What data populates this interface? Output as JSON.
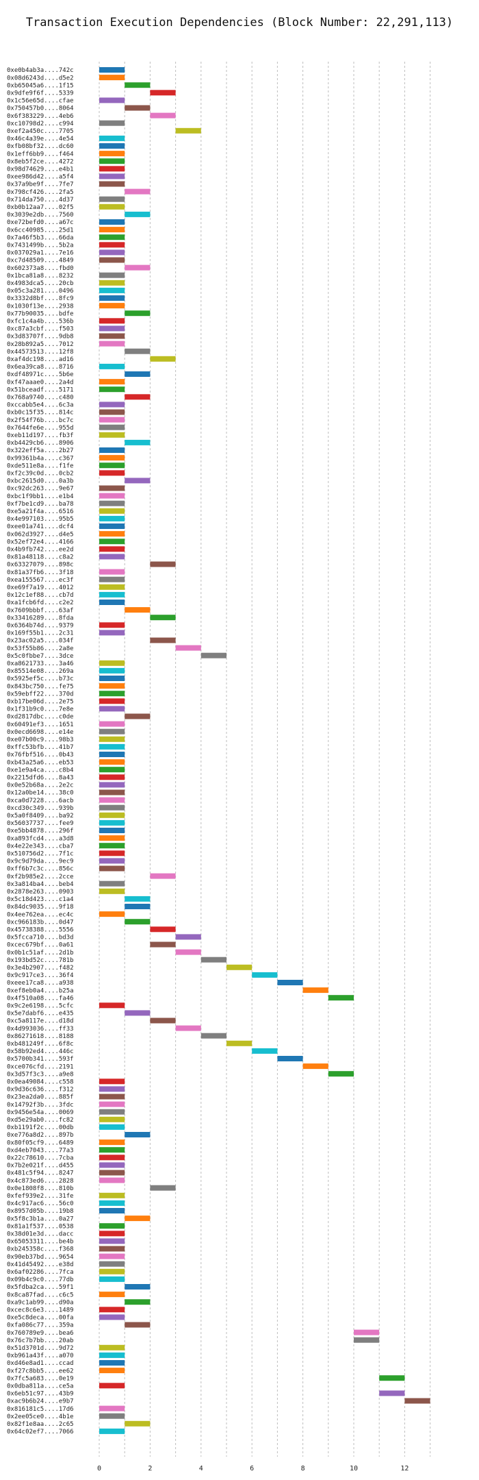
{
  "chart_data": {
    "type": "bar",
    "orientation": "horizontal-gantt",
    "title": "Transaction Execution Dependencies (Block Number: 22,291,113)",
    "xlabel": "",
    "ylabel": "",
    "xlim": [
      -0.8,
      13.8
    ],
    "xticks": [
      0,
      2,
      4,
      6,
      8,
      10,
      12
    ],
    "grid": "vertical dashed",
    "bar_duration": 1,
    "color_cycle": [
      "#1f77b4",
      "#ff7f0e",
      "#2ca02c",
      "#d62728",
      "#9467bd",
      "#8c564b",
      "#e377c2",
      "#7f7f7f",
      "#bcbd22",
      "#17becf"
    ],
    "transactions": [
      {
        "hash": "0xe0b4ab3a....742c",
        "start": 0
      },
      {
        "hash": "0x08d6243d....d5e2",
        "start": 0
      },
      {
        "hash": "0xb65045a6....1f15",
        "start": 1
      },
      {
        "hash": "0x9dfe9f6f....5339",
        "start": 2
      },
      {
        "hash": "0x1c56e65d....cfae",
        "start": 0
      },
      {
        "hash": "0x750457b0....8064",
        "start": 1
      },
      {
        "hash": "0x6f383229....4eb6",
        "start": 2
      },
      {
        "hash": "0xc10798d2....c994",
        "start": 0
      },
      {
        "hash": "0xef2a450c....7705",
        "start": 3
      },
      {
        "hash": "0x46c4a39e....4e54",
        "start": 0
      },
      {
        "hash": "0xfb08bf32....dc60",
        "start": 0
      },
      {
        "hash": "0x1eff6bb9....f464",
        "start": 0
      },
      {
        "hash": "0x8eb5f2ce....4272",
        "start": 0
      },
      {
        "hash": "0x98d74629....e4b1",
        "start": 0
      },
      {
        "hash": "0xee986d42....a5f4",
        "start": 0
      },
      {
        "hash": "0x37a9be9f....7fe7",
        "start": 0
      },
      {
        "hash": "0x798cf426....2fa5",
        "start": 1
      },
      {
        "hash": "0x714da750....4d37",
        "start": 0
      },
      {
        "hash": "0xb0b12aa7....02f5",
        "start": 0
      },
      {
        "hash": "0x3039e2db....7560",
        "start": 1
      },
      {
        "hash": "0xe72befd0....a67c",
        "start": 0
      },
      {
        "hash": "0x6cc40985....25d1",
        "start": 0
      },
      {
        "hash": "0x7a46f5b3....66da",
        "start": 0
      },
      {
        "hash": "0x7431499b....5b2a",
        "start": 0
      },
      {
        "hash": "0x037029a1....7e16",
        "start": 0
      },
      {
        "hash": "0xc7d48509....4849",
        "start": 0
      },
      {
        "hash": "0x602373a8....fbd0",
        "start": 1
      },
      {
        "hash": "0x1bca81a8....8232",
        "start": 0
      },
      {
        "hash": "0x4983dca5....20cb",
        "start": 0
      },
      {
        "hash": "0x05c3a281....0496",
        "start": 0
      },
      {
        "hash": "0x3332d8bf....8fc9",
        "start": 0
      },
      {
        "hash": "0x1030f13e....2938",
        "start": 0
      },
      {
        "hash": "0x77b90035....bdfe",
        "start": 1
      },
      {
        "hash": "0xfc1c4a4b....536b",
        "start": 0
      },
      {
        "hash": "0xc87a3cbf....f503",
        "start": 0
      },
      {
        "hash": "0x3d83707f....9db8",
        "start": 0
      },
      {
        "hash": "0x28b892a5....7012",
        "start": 0
      },
      {
        "hash": "0x44573513....12f8",
        "start": 1
      },
      {
        "hash": "0xaf4dc198....ad16",
        "start": 2
      },
      {
        "hash": "0x6ea39ca8....8716",
        "start": 0
      },
      {
        "hash": "0xdf48971c....5b6e",
        "start": 1
      },
      {
        "hash": "0xf47aaae0....2a4d",
        "start": 0
      },
      {
        "hash": "0x51bceadf....5171",
        "start": 0
      },
      {
        "hash": "0x768a9740....c480",
        "start": 1
      },
      {
        "hash": "0xccabb5e4....6c3a",
        "start": 0
      },
      {
        "hash": "0xb0c15f35....814c",
        "start": 0
      },
      {
        "hash": "0x2f54f76b....bc7c",
        "start": 0
      },
      {
        "hash": "0x7644fe6e....955d",
        "start": 0
      },
      {
        "hash": "0xeb11d197....fb3f",
        "start": 0
      },
      {
        "hash": "0xb4429cb6....8906",
        "start": 1
      },
      {
        "hash": "0x322eff5a....2b27",
        "start": 0
      },
      {
        "hash": "0x99361b4a....c367",
        "start": 0
      },
      {
        "hash": "0xde511e8a....f1fe",
        "start": 0
      },
      {
        "hash": "0xf2c39c0d....0cb2",
        "start": 0
      },
      {
        "hash": "0xbc2615d0....0a3b",
        "start": 1
      },
      {
        "hash": "0xc92dc263....9e67",
        "start": 0
      },
      {
        "hash": "0xbc1f9bb1....e1b4",
        "start": 0
      },
      {
        "hash": "0xf7be1cd9....ba78",
        "start": 0
      },
      {
        "hash": "0xe5a21f4a....6516",
        "start": 0
      },
      {
        "hash": "0x4e997103....95b5",
        "start": 0
      },
      {
        "hash": "0xee01a741....dcf4",
        "start": 0
      },
      {
        "hash": "0x062d3927....d4e5",
        "start": 0
      },
      {
        "hash": "0x52ef72e4....4166",
        "start": 0
      },
      {
        "hash": "0x4b9fb742....ee2d",
        "start": 0
      },
      {
        "hash": "0x81a48118....c8a2",
        "start": 0
      },
      {
        "hash": "0x63327079....898c",
        "start": 2
      },
      {
        "hash": "0x81a37fb6....3f18",
        "start": 0
      },
      {
        "hash": "0xea155567....ec3f",
        "start": 0
      },
      {
        "hash": "0xe69f7a19....4012",
        "start": 0
      },
      {
        "hash": "0x12c1ef88....cb7d",
        "start": 0
      },
      {
        "hash": "0xa1fcb6fd....c2e2",
        "start": 0
      },
      {
        "hash": "0x7609bbbf....63af",
        "start": 1
      },
      {
        "hash": "0x33416289....8fda",
        "start": 2
      },
      {
        "hash": "0x6364b74d....9379",
        "start": 0
      },
      {
        "hash": "0x169f55b1....2c31",
        "start": 0
      },
      {
        "hash": "0x23ac02a5....034f",
        "start": 2
      },
      {
        "hash": "0x53f55b86....2a8e",
        "start": 3
      },
      {
        "hash": "0x5c0fbbe7....3dce",
        "start": 4
      },
      {
        "hash": "0xa8621733....3a46",
        "start": 0
      },
      {
        "hash": "0x85514e08....269a",
        "start": 0
      },
      {
        "hash": "0x5925ef5c....b73c",
        "start": 0
      },
      {
        "hash": "0x843bc750....fe75",
        "start": 0
      },
      {
        "hash": "0x59ebff22....370d",
        "start": 0
      },
      {
        "hash": "0xb17be06d....2e75",
        "start": 0
      },
      {
        "hash": "0x1f31b9c0....7e8e",
        "start": 0
      },
      {
        "hash": "0xd2817dbc....c0de",
        "start": 1
      },
      {
        "hash": "0x60491ef3....1651",
        "start": 0
      },
      {
        "hash": "0x0ecd6698....e14e",
        "start": 0
      },
      {
        "hash": "0xe07b00c9....98b3",
        "start": 0
      },
      {
        "hash": "0xffc53bfb....41b7",
        "start": 0
      },
      {
        "hash": "0x76fbf516....0b43",
        "start": 0
      },
      {
        "hash": "0xb43a25a6....eb53",
        "start": 0
      },
      {
        "hash": "0xe1e9a4ca....c8b4",
        "start": 0
      },
      {
        "hash": "0x2215dfd6....8a43",
        "start": 0
      },
      {
        "hash": "0x0e52b68a....2e2c",
        "start": 0
      },
      {
        "hash": "0x12a0be14....38c0",
        "start": 0
      },
      {
        "hash": "0xca0d7228....6acb",
        "start": 0
      },
      {
        "hash": "0xcd30c349....939b",
        "start": 0
      },
      {
        "hash": "0x5a0f8409....ba92",
        "start": 0
      },
      {
        "hash": "0x56037737....fee9",
        "start": 0
      },
      {
        "hash": "0xe5bb4878....296f",
        "start": 0
      },
      {
        "hash": "0xa893fcd4....a3d8",
        "start": 0
      },
      {
        "hash": "0x4e22e343....cba7",
        "start": 0
      },
      {
        "hash": "0x510756d2....7f1c",
        "start": 0
      },
      {
        "hash": "0x9c9d79da....9ec9",
        "start": 0
      },
      {
        "hash": "0xff6b7c3c....856c",
        "start": 0
      },
      {
        "hash": "0xf2b985e2....2cce",
        "start": 2
      },
      {
        "hash": "0x3a814ba4....beb4",
        "start": 0
      },
      {
        "hash": "0x2878e263....0903",
        "start": 0
      },
      {
        "hash": "0x5c18d423....c1a4",
        "start": 1
      },
      {
        "hash": "0x84dc9035....9f18",
        "start": 1
      },
      {
        "hash": "0x4ee762ea....ec4c",
        "start": 0
      },
      {
        "hash": "0xc966183b....0d47",
        "start": 1
      },
      {
        "hash": "0x45738388....5556",
        "start": 2
      },
      {
        "hash": "0x5fcca710....bd3d",
        "start": 3
      },
      {
        "hash": "0xcec679bf....0a61",
        "start": 2
      },
      {
        "hash": "0x0b1c51af....2d1b",
        "start": 3
      },
      {
        "hash": "0x193bd52c....781b",
        "start": 4
      },
      {
        "hash": "0x3e4b2907....f482",
        "start": 5
      },
      {
        "hash": "0x9c917ce3....36f4",
        "start": 6
      },
      {
        "hash": "0xeee17ca8....a938",
        "start": 7
      },
      {
        "hash": "0xef8eb0a4....b25a",
        "start": 8
      },
      {
        "hash": "0x4f510a08....fa46",
        "start": 9
      },
      {
        "hash": "0x9c2e6198....5cfc",
        "start": 0
      },
      {
        "hash": "0x5e7dabf6....e435",
        "start": 1
      },
      {
        "hash": "0xc5a8117e....d18d",
        "start": 2
      },
      {
        "hash": "0x4d993036....ff33",
        "start": 3
      },
      {
        "hash": "0x86271618....8188",
        "start": 4
      },
      {
        "hash": "0xb481249f....6f8c",
        "start": 5
      },
      {
        "hash": "0x58b92ed4....446c",
        "start": 6
      },
      {
        "hash": "0x5700b341....593f",
        "start": 7
      },
      {
        "hash": "0xce076cfd....2191",
        "start": 8
      },
      {
        "hash": "0x3d57f3c3....a9e8",
        "start": 9
      },
      {
        "hash": "0x0ea49084....c558",
        "start": 0
      },
      {
        "hash": "0x9d36c636....f312",
        "start": 0
      },
      {
        "hash": "0x23ea2da0....885f",
        "start": 0
      },
      {
        "hash": "0x14792f3b....3fdc",
        "start": 0
      },
      {
        "hash": "0x9456e54a....0069",
        "start": 0
      },
      {
        "hash": "0xd5e29ab0....fc82",
        "start": 0
      },
      {
        "hash": "0xb1191f2c....00db",
        "start": 0
      },
      {
        "hash": "0xe776a8d2....897b",
        "start": 1
      },
      {
        "hash": "0x80f05cf9....6489",
        "start": 0
      },
      {
        "hash": "0xd4eb7043....77a3",
        "start": 0
      },
      {
        "hash": "0x22c78610....7cba",
        "start": 0
      },
      {
        "hash": "0x7b2e021f....d455",
        "start": 0
      },
      {
        "hash": "0x481c5f94....8247",
        "start": 0
      },
      {
        "hash": "0x4c873ed6....2828",
        "start": 0
      },
      {
        "hash": "0x0e1808f8....810b",
        "start": 2
      },
      {
        "hash": "0xfef939e2....31fe",
        "start": 0
      },
      {
        "hash": "0x4c917ac6....56c0",
        "start": 0
      },
      {
        "hash": "0x8957d05b....19b8",
        "start": 0
      },
      {
        "hash": "0x5f8c3b1a....0a27",
        "start": 1
      },
      {
        "hash": "0x81a1f537....0538",
        "start": 0
      },
      {
        "hash": "0x38d01e3d....dacc",
        "start": 0
      },
      {
        "hash": "0x65053311....be4b",
        "start": 0
      },
      {
        "hash": "0xb245358c....f368",
        "start": 0
      },
      {
        "hash": "0x90eb37bd....9654",
        "start": 0
      },
      {
        "hash": "0x41d45492....e38d",
        "start": 0
      },
      {
        "hash": "0x6af02286....7fca",
        "start": 0
      },
      {
        "hash": "0x09b4c9c0....77db",
        "start": 0
      },
      {
        "hash": "0x5fdba2ca....59f1",
        "start": 1
      },
      {
        "hash": "0x8ca87fad....c6c5",
        "start": 0
      },
      {
        "hash": "0xa9c1ab99....d90a",
        "start": 1
      },
      {
        "hash": "0xcec8c6e3....1489",
        "start": 0
      },
      {
        "hash": "0xe5c8deca....00fa",
        "start": 0
      },
      {
        "hash": "0xfa086c77....359a",
        "start": 1
      },
      {
        "hash": "0x760789e9....bea6",
        "start": 10
      },
      {
        "hash": "0x76c7b7bb....20ab",
        "start": 10
      },
      {
        "hash": "0x51d3701d....9d72",
        "start": 0
      },
      {
        "hash": "0xb961a43f....a070",
        "start": 0
      },
      {
        "hash": "0xd46e8ad1....ccad",
        "start": 0
      },
      {
        "hash": "0xf27c8bb5....ee62",
        "start": 0
      },
      {
        "hash": "0x7fc5a683....0e19",
        "start": 11
      },
      {
        "hash": "0x0dba811a....ce5a",
        "start": 0
      },
      {
        "hash": "0x6eb51c97....43b9",
        "start": 11
      },
      {
        "hash": "0xac9b6b24....e9b7",
        "start": 12
      },
      {
        "hash": "0x816181c5....17d6",
        "start": 0
      },
      {
        "hash": "0x2ee05ce0....4b1e",
        "start": 0
      },
      {
        "hash": "0x82f1e8aa....2c65",
        "start": 1
      },
      {
        "hash": "0x64c02ef7....7066",
        "start": 0
      }
    ]
  }
}
